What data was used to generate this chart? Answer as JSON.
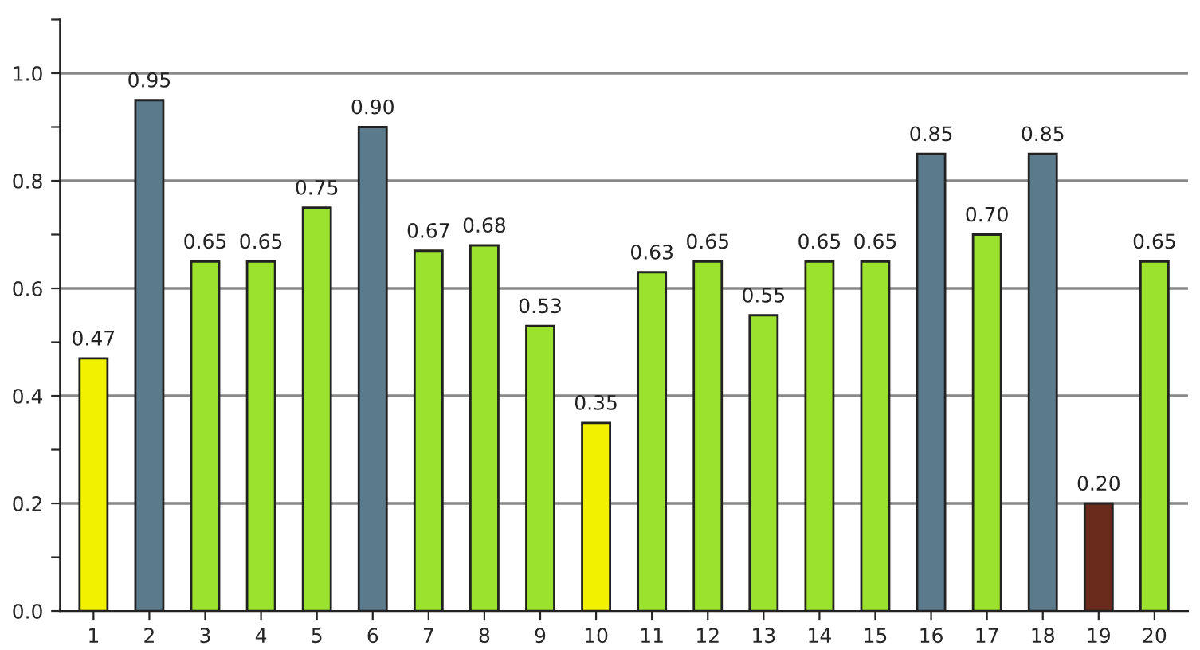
{
  "chart_data": {
    "type": "bar",
    "categories": [
      "1",
      "2",
      "3",
      "4",
      "5",
      "6",
      "7",
      "8",
      "9",
      "10",
      "11",
      "12",
      "13",
      "14",
      "15",
      "16",
      "17",
      "18",
      "19",
      "20"
    ],
    "values": [
      0.47,
      0.95,
      0.65,
      0.65,
      0.75,
      0.9,
      0.67,
      0.68,
      0.53,
      0.35,
      0.63,
      0.65,
      0.55,
      0.65,
      0.65,
      0.85,
      0.7,
      0.85,
      0.2,
      0.65
    ],
    "colors": [
      "#f2f200",
      "#5b7b8c",
      "#9be22e",
      "#9be22e",
      "#9be22e",
      "#5b7b8c",
      "#9be22e",
      "#9be22e",
      "#9be22e",
      "#f2f200",
      "#9be22e",
      "#9be22e",
      "#9be22e",
      "#9be22e",
      "#9be22e",
      "#5b7b8c",
      "#9be22e",
      "#5b7b8c",
      "#6a2a1c",
      "#9be22e"
    ],
    "value_labels": [
      "0.47",
      "0.95",
      "0.65",
      "0.65",
      "0.75",
      "0.90",
      "0.67",
      "0.68",
      "0.53",
      "0.35",
      "0.63",
      "0.65",
      "0.55",
      "0.65",
      "0.65",
      "0.85",
      "0.70",
      "0.85",
      "0.20",
      "0.65"
    ],
    "ylim": [
      0,
      1.1
    ],
    "yticks": [
      {
        "value": 0.1,
        "label": null
      },
      {
        "value": 0.0,
        "label": "0.0"
      },
      {
        "value": 0.2,
        "label": "0.2"
      },
      {
        "value": 0.3,
        "label": null
      },
      {
        "value": 0.4,
        "label": "0.4"
      },
      {
        "value": 0.5,
        "label": null
      },
      {
        "value": 0.6,
        "label": "0.6"
      },
      {
        "value": 0.7,
        "label": null
      },
      {
        "value": 0.8,
        "label": "0.8"
      },
      {
        "value": 0.9,
        "label": null
      },
      {
        "value": 1.0,
        "label": "1.0"
      },
      {
        "value": 1.1,
        "label": null
      }
    ],
    "grid": "y",
    "legend": false
  }
}
